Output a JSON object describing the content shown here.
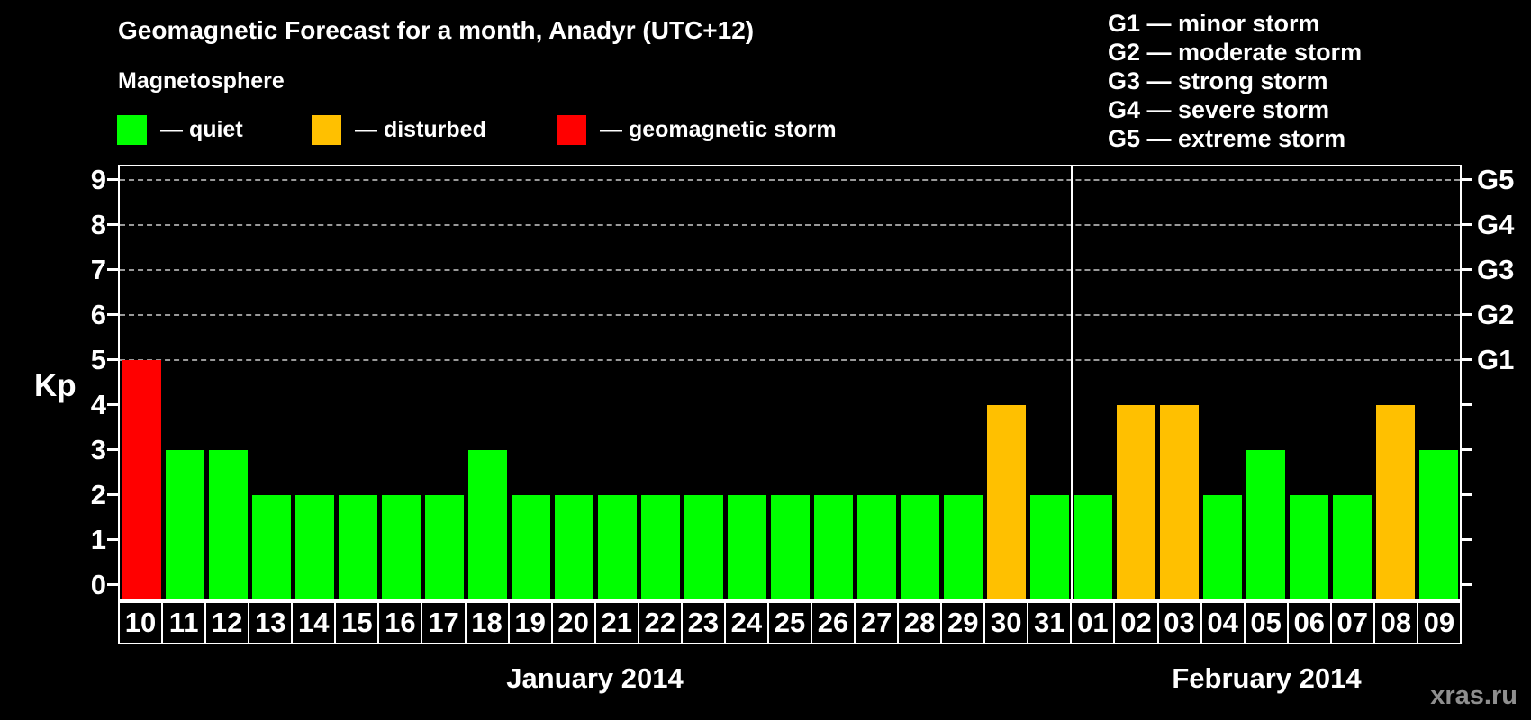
{
  "title": "Geomagnetic Forecast for a month, Anadyr (UTC+12)",
  "subtitle": "Magnetosphere",
  "legend": {
    "items": [
      {
        "label": "— quiet",
        "status": "quiet",
        "color": "#00ff00"
      },
      {
        "label": "— disturbed",
        "status": "disturbed",
        "color": "#ffc000"
      },
      {
        "label": "— geomagnetic storm",
        "status": "storm",
        "color": "#ff0000"
      }
    ]
  },
  "g_legend": [
    "G1 — minor storm",
    "G2 — moderate storm",
    "G3 — strong storm",
    "G4 — severe storm",
    "G5 — extreme storm"
  ],
  "chart_data": {
    "type": "bar",
    "title": "Geomagnetic Forecast for a month, Anadyr (UTC+12)",
    "ylabel": "Kp",
    "ylim": [
      0,
      9
    ],
    "yticks": [
      0,
      1,
      2,
      3,
      4,
      5,
      6,
      7,
      8,
      9
    ],
    "gridlines_at": [
      5,
      6,
      7,
      8,
      9
    ],
    "grid_style": "dashed horizontal lines only at Kp 5–9",
    "right_axis": [
      {
        "kp": 5,
        "label": "G1"
      },
      {
        "kp": 6,
        "label": "G2"
      },
      {
        "kp": 7,
        "label": "G3"
      },
      {
        "kp": 8,
        "label": "G4"
      },
      {
        "kp": 9,
        "label": "G5"
      }
    ],
    "categories": [
      "10",
      "11",
      "12",
      "13",
      "14",
      "15",
      "16",
      "17",
      "18",
      "19",
      "20",
      "21",
      "22",
      "23",
      "24",
      "25",
      "26",
      "27",
      "28",
      "29",
      "30",
      "31",
      "01",
      "02",
      "03",
      "04",
      "05",
      "06",
      "07",
      "08",
      "09"
    ],
    "values": [
      5,
      3,
      3,
      2,
      2,
      2,
      2,
      2,
      3,
      2,
      2,
      2,
      2,
      2,
      2,
      2,
      2,
      2,
      2,
      2,
      4,
      2,
      2,
      4,
      4,
      2,
      3,
      2,
      2,
      4,
      3
    ],
    "statuses": [
      "storm",
      "quiet",
      "quiet",
      "quiet",
      "quiet",
      "quiet",
      "quiet",
      "quiet",
      "quiet",
      "quiet",
      "quiet",
      "quiet",
      "quiet",
      "quiet",
      "quiet",
      "quiet",
      "quiet",
      "quiet",
      "quiet",
      "quiet",
      "disturbed",
      "quiet",
      "quiet",
      "disturbed",
      "disturbed",
      "quiet",
      "quiet",
      "quiet",
      "quiet",
      "disturbed",
      "quiet"
    ],
    "status_colors": {
      "quiet": "#00ff00",
      "disturbed": "#ffc000",
      "storm": "#ff0000"
    },
    "months": [
      {
        "label": "January 2014",
        "span": 22
      },
      {
        "label": "February 2014",
        "span": 9
      }
    ],
    "legend_position": "top-left"
  },
  "watermark": "xras.ru"
}
